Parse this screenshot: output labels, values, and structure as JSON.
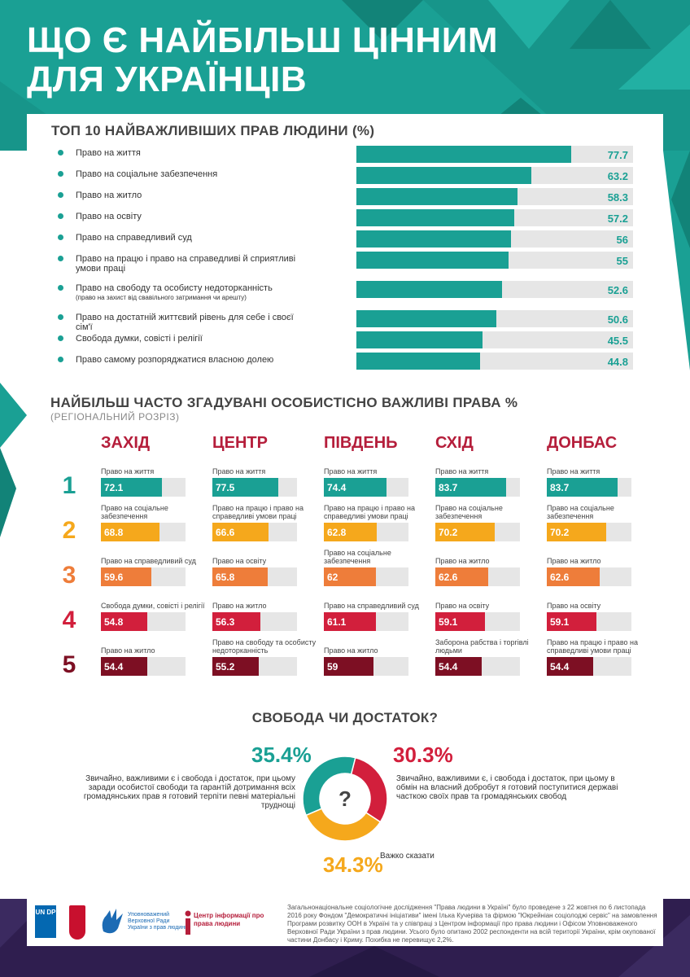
{
  "title_lines": [
    "Що є найбільш цінним",
    "для українців"
  ],
  "colors": {
    "teal": "#1aa094",
    "rank1": "#1aa094",
    "rank2": "#f5a81c",
    "rank3": "#ee7d3a",
    "rank4": "#d21f3c",
    "rank5": "#7d0f23",
    "region": "#b51e3b"
  },
  "top10": {
    "title": "Топ 10 найважливіших прав людини (%)",
    "items": [
      {
        "label": "Право на життя",
        "value": 77.7,
        "display": "77.7",
        "note": ""
      },
      {
        "label": "Право на соціальне забезпечення",
        "value": 63.2,
        "display": "63.2",
        "note": ""
      },
      {
        "label": "Право на житло",
        "value": 58.3,
        "display": "58.3",
        "note": ""
      },
      {
        "label": "Право на освіту",
        "value": 57.2,
        "display": "57.2",
        "note": ""
      },
      {
        "label": "Право на справедливий суд",
        "value": 56,
        "display": "56",
        "note": ""
      },
      {
        "label": "Право на працю і право на справедливі й сприятливі умови праці",
        "value": 55,
        "display": "55",
        "note": ""
      },
      {
        "label": "Право на свободу та особисту недоторканність",
        "value": 52.6,
        "display": "52.6",
        "note": "(право на захист від свавільного затримання чи арешту)"
      },
      {
        "label": "Право на достатній життєвий рівень для себе і своєї сім'ї",
        "value": 50.6,
        "display": "50.6",
        "note": ""
      },
      {
        "label": "Свобода думки, совісті і релігії",
        "value": 45.5,
        "display": "45.5",
        "note": ""
      },
      {
        "label": "Право самому розпоряджатися власною долею",
        "value": 44.8,
        "display": "44.8",
        "note": ""
      }
    ]
  },
  "regional": {
    "title": "Найбільш часто згадувані особистісно важливі права %",
    "subtitle": "(регіональний розріз)",
    "ranks": [
      "1",
      "2",
      "3",
      "4",
      "5"
    ],
    "regions": [
      {
        "name": "Захід",
        "items": [
          {
            "label": "Право на життя",
            "value": 72.1,
            "display": "72.1"
          },
          {
            "label": "Право на соціальне забезпечення",
            "value": 68.8,
            "display": "68.8"
          },
          {
            "label": "Право на справедливий суд",
            "value": 59.6,
            "display": "59.6"
          },
          {
            "label": "Свобода думки, совісті і релігії",
            "value": 54.8,
            "display": "54.8"
          },
          {
            "label": "Право на житло",
            "value": 54.4,
            "display": "54.4"
          }
        ]
      },
      {
        "name": "Центр",
        "items": [
          {
            "label": "Право на життя",
            "value": 77.5,
            "display": "77.5"
          },
          {
            "label": "Право на працю і право на справедливі умови праці",
            "value": 66.6,
            "display": "66.6"
          },
          {
            "label": "Право на освіту",
            "value": 65.8,
            "display": "65.8"
          },
          {
            "label": "Право на житло",
            "value": 56.3,
            "display": "56.3"
          },
          {
            "label": "Право на свободу та особисту недоторканність",
            "value": 55.2,
            "display": "55.2"
          }
        ]
      },
      {
        "name": "Південь",
        "items": [
          {
            "label": "Право на життя",
            "value": 74.4,
            "display": "74.4"
          },
          {
            "label": "Право на працю і право на справедливі умови праці",
            "value": 62.8,
            "display": "62.8"
          },
          {
            "label": "Право на соціальне забезпечення",
            "value": 62,
            "display": "62"
          },
          {
            "label": "Право на справедливий суд",
            "value": 61.1,
            "display": "61.1"
          },
          {
            "label": "Право на житло",
            "value": 59,
            "display": "59"
          }
        ]
      },
      {
        "name": "Схід",
        "items": [
          {
            "label": "Право на життя",
            "value": 83.7,
            "display": "83.7"
          },
          {
            "label": "Право на соціальне забезпечення",
            "value": 70.2,
            "display": "70.2"
          },
          {
            "label": "Право на житло",
            "value": 62.6,
            "display": "62.6"
          },
          {
            "label": "Право на освіту",
            "value": 59.1,
            "display": "59.1"
          },
          {
            "label": "Заборона рабства і торгівлі людьми",
            "value": 54.4,
            "display": "54.4"
          }
        ]
      },
      {
        "name": "Донбас",
        "items": [
          {
            "label": "Право на життя",
            "value": 83.7,
            "display": "83.7"
          },
          {
            "label": "Право на соціальне забезпечення",
            "value": 70.2,
            "display": "70.2"
          },
          {
            "label": "Право на житло",
            "value": 62.6,
            "display": "62.6"
          },
          {
            "label": "Право на освіту",
            "value": 59.1,
            "display": "59.1"
          },
          {
            "label": "Право на працю і право на справедливі умови праці",
            "value": 54.4,
            "display": "54.4"
          }
        ]
      }
    ]
  },
  "freedom": {
    "title": "Свобода чи достаток?",
    "center_symbol": "?",
    "slices": [
      {
        "pct": "35.4%",
        "value": 35.4,
        "color": "#1aa094",
        "text": "Звичайно, важливими є і свобода і достаток, при цьому заради особистої свободи та гарантій дотримання всіх громадянських прав я готовий терпіти певні матеріальні труднощі"
      },
      {
        "pct": "30.3%",
        "value": 30.3,
        "color": "#d21f3c",
        "text": "Звичайно, важливими є, і свобода і достаток, при цьому в обмін на власний добробут я готовий поступитися державі часткою своїх прав та громадянських свобод"
      },
      {
        "pct": "34.3%",
        "value": 34.3,
        "color": "#f5a81c",
        "text": "Важко сказати"
      }
    ]
  },
  "footer": {
    "undp_label": "UN DP",
    "ombudsman_label": "Уповноважений Верховної Ради України з прав людини",
    "center_label": "Центр інформації про права людини",
    "note": "Загальнонаціональне соціологічне дослідження \"Права людини в Україні\" було проведене з 22 жовтня по 6 листопада 2016 року Фондом \"Демократичні ініціативи\" імені Ілька Кучеріва та фірмою \"Юкрейніан соціолоджі сервіс\" на замовлення Програми розвитку ООН в Україні та у співпраці з Центром інформації про права людини і Офісом Уповноваженого Верховної Ради України з прав людини. Усього було опитано 2002 респонденти на всій території України, крім окупованої частини Донбасу і Криму. Похибка не перевищує 2,2%."
  }
}
